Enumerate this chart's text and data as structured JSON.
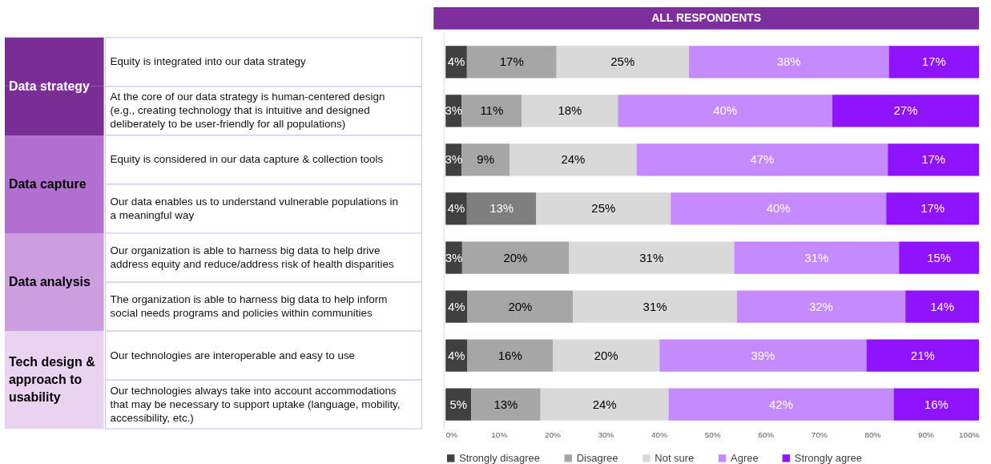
{
  "chart_data": {
    "type": "bar",
    "orientation": "horizontal",
    "stacked": true,
    "title": "ALL RESPONDENTS",
    "categories": [
      "Equity is integrated into our data strategy",
      "At the core of our data strategy is human-centered design (e.g., creating technology that is intuitive and designed deliberately to be user-friendly for all populations)",
      "Equity is considered in our data capture & collection tools",
      "Our data enables us to understand vulnerable populations in a meaningful way",
      "Our organization is able to harness big data to help drive address equity and reduce/address risk of health disparities",
      "The organization is able to harness big data to help inform social needs programs and policies within communities",
      "Our technologies are interoperable and easy to use",
      "Our technologies always take into account accommodations that may be necessary to support uptake (language, mobility, accessibility, etc.)"
    ],
    "annotations": [
      "Data strategy",
      "Data capture",
      "Data analysis",
      "Tech design & approach to usability"
    ],
    "series": [
      {
        "name": "Strongly disagree",
        "color": "#404040",
        "values": [
          4.0,
          3.0,
          3.0,
          4.0,
          3.1,
          4.1,
          4.1,
          4.8
        ],
        "value_labels": [
          "4%",
          "3%",
          "3%",
          "4%",
          "3%",
          "4%",
          "4%",
          "5%"
        ]
      },
      {
        "name": "Disagree",
        "color": "#a6a6a6",
        "colors": [
          "#a6a6a6",
          "#a6a6a6",
          "#a6a6a6",
          "#7f7f7f",
          "#a6a6a6",
          "#a6a6a6",
          "#a6a6a6",
          "#a6a6a6"
        ],
        "values": [
          16.8,
          11.3,
          9.0,
          13.0,
          20.0,
          19.8,
          16.0,
          13.0
        ],
        "value_labels": [
          "17%",
          "11%",
          "9%",
          "13%",
          "20%",
          "20%",
          "16%",
          "13%"
        ]
      },
      {
        "name": "Not sure",
        "color": "#d9d9d9",
        "values": [
          24.8,
          18.0,
          23.8,
          25.2,
          31.0,
          30.7,
          20.0,
          24.0
        ],
        "value_labels": [
          "25%",
          "18%",
          "24%",
          "25%",
          "31%",
          "31%",
          "20%",
          "24%"
        ]
      },
      {
        "name": "Agree",
        "color": "#c68aff",
        "values": [
          37.5,
          40.2,
          47.1,
          40.4,
          30.9,
          31.6,
          38.8,
          42.2
        ],
        "value_labels": [
          "38%",
          "40%",
          "47%",
          "40%",
          "31%",
          "32%",
          "39%",
          "42%"
        ]
      },
      {
        "name": "Strongly agree",
        "color": "#9013fe",
        "values": [
          16.9,
          27.5,
          17.1,
          17.4,
          15.0,
          13.8,
          21.1,
          16.0
        ],
        "value_labels": [
          "17%",
          "27%",
          "17%",
          "17%",
          "15%",
          "14%",
          "21%",
          "16%"
        ]
      }
    ],
    "xlim": [
      0,
      100
    ],
    "xticks": [
      {
        "value": 0,
        "label": "0%"
      },
      {
        "value": 10,
        "label": "10%"
      },
      {
        "value": 20,
        "label": "20%"
      },
      {
        "value": 30,
        "label": "30%"
      },
      {
        "value": 40,
        "label": "40%"
      },
      {
        "value": 50,
        "label": "50%"
      },
      {
        "value": 60,
        "label": "60%"
      },
      {
        "value": 70,
        "label": "70%"
      },
      {
        "value": 80,
        "label": "80%"
      },
      {
        "value": 90,
        "label": "90%"
      },
      {
        "value": 100,
        "label": "100%"
      }
    ],
    "grid": false,
    "legend": "bottom"
  }
}
